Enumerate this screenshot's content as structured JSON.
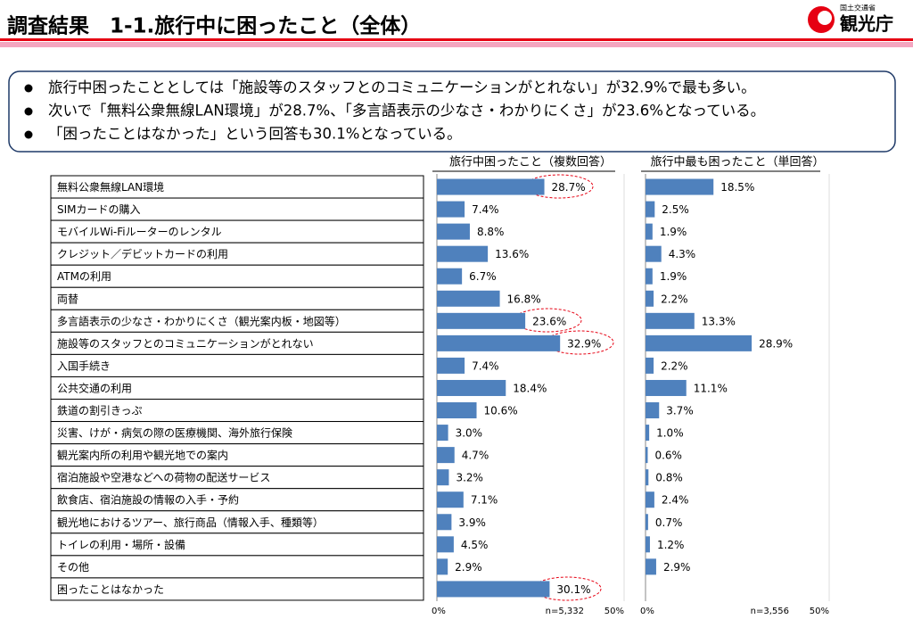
{
  "header": {
    "title": "調査結果　1-1.旅行中に困ったこと（全体）",
    "logo_small": "国土交通省",
    "logo_large": "観光庁"
  },
  "bullets": [
    "旅行中困ったこととしては「施設等のスタッフとのコミュニケーションがとれない」が32.9%で最も多い。",
    "次いで「無料公衆無線LAN環境」が28.7%、「多言語表示の少なさ・わかりにくさ」が23.6%となっている。",
    "「困ったことはなかった」という回答も30.1%となっている。"
  ],
  "chart_data": [
    {
      "type": "bar",
      "orientation": "horizontal",
      "title": "旅行中困ったこと（複数回答）",
      "color": "#4f81bd",
      "categories": [
        "無料公衆無線LAN環境",
        "SIMカードの購入",
        "モバイルWi-Fiルーターのレンタル",
        "クレジット／デビットカードの利用",
        "ATMの利用",
        "両替",
        "多言語表示の少なさ・わかりにくさ（観光案内板・地図等）",
        "施設等のスタッフとのコミュニケーションがとれない",
        "入国手続き",
        "公共交通の利用",
        "鉄道の割引きっぷ",
        "災害、けが・病気の際の医療機関、海外旅行保険",
        "観光案内所の利用や観光地での案内",
        "宿泊施設や空港などへの荷物の配送サービス",
        "飲食店、宿泊施設の情報の入手・予約",
        "観光地におけるツアー、旅行商品（情報入手、種類等）",
        "トイレの利用・場所・設備",
        "その他",
        "困ったことはなかった"
      ],
      "values": [
        28.7,
        7.4,
        8.8,
        13.6,
        6.7,
        16.8,
        23.6,
        32.9,
        7.4,
        18.4,
        10.6,
        3.0,
        4.7,
        3.2,
        7.1,
        3.9,
        4.5,
        2.9,
        30.1
      ],
      "value_labels": [
        "28.7%",
        "7.4%",
        "8.8%",
        "13.6%",
        "6.7%",
        "16.8%",
        "23.6%",
        "32.9%",
        "7.4%",
        "18.4%",
        "10.6%",
        "3.0%",
        "4.7%",
        "3.2%",
        "7.1%",
        "3.9%",
        "4.5%",
        "2.9%",
        "30.1%"
      ],
      "xlim": [
        0,
        50
      ],
      "xticks": [
        {
          "value": 0,
          "label": "0%"
        },
        {
          "value": 50,
          "label": "50%"
        }
      ],
      "note": "n=5,332"
    },
    {
      "type": "bar",
      "orientation": "horizontal",
      "title": "旅行中最も困ったこと（単回答）",
      "color": "#4f81bd",
      "values": [
        18.5,
        2.5,
        1.9,
        4.3,
        1.9,
        2.2,
        13.3,
        28.9,
        2.2,
        11.1,
        3.7,
        1.0,
        0.6,
        0.8,
        2.4,
        0.7,
        1.2,
        2.9
      ],
      "value_labels": [
        "18.5%",
        "2.5%",
        "1.9%",
        "4.3%",
        "1.9%",
        "2.2%",
        "13.3%",
        "28.9%",
        "2.2%",
        "11.1%",
        "3.7%",
        "1.0%",
        "0.6%",
        "0.8%",
        "2.4%",
        "0.7%",
        "1.2%",
        "2.9%"
      ],
      "xlim": [
        0,
        50
      ],
      "xticks": [
        {
          "value": 0,
          "label": "0%"
        },
        {
          "value": 50,
          "label": "50%"
        }
      ],
      "note": "n=3,556"
    }
  ]
}
